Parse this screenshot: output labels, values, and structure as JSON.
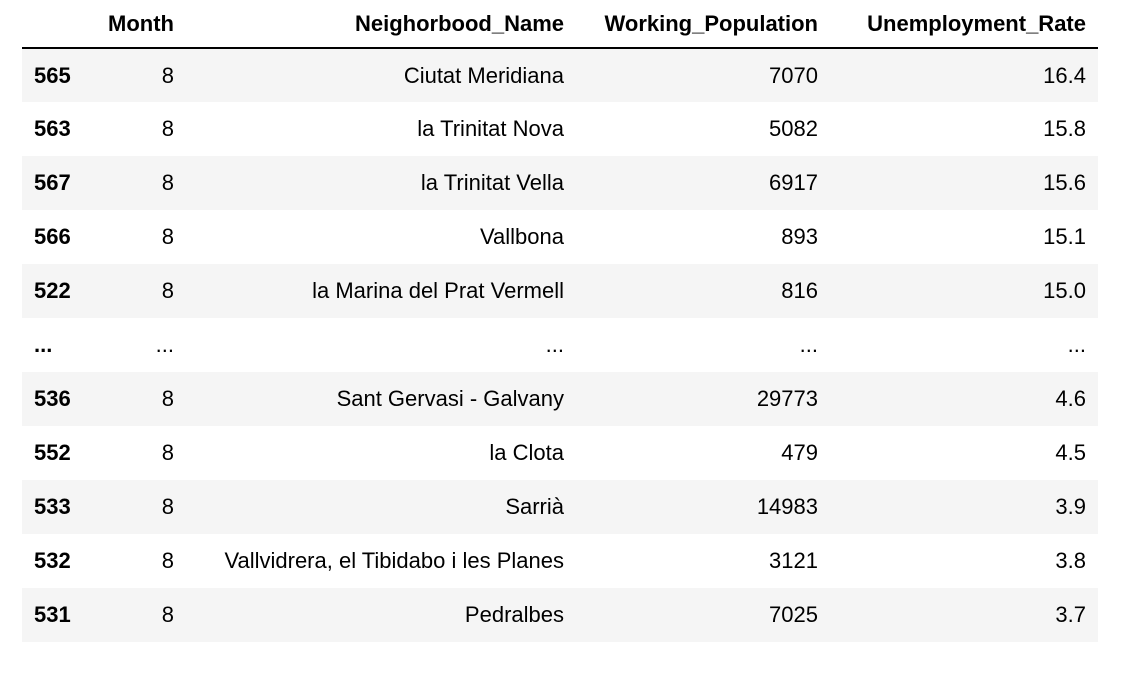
{
  "table": {
    "columns": [
      "",
      "Month",
      "Neighorbood_Name",
      "Working_Population",
      "Unemployment_Rate"
    ],
    "rows": [
      {
        "index": "565",
        "month": "8",
        "name": "Ciutat Meridiana",
        "population": "7070",
        "rate": "16.4"
      },
      {
        "index": "563",
        "month": "8",
        "name": "la Trinitat Nova",
        "population": "5082",
        "rate": "15.8"
      },
      {
        "index": "567",
        "month": "8",
        "name": "la Trinitat Vella",
        "population": "6917",
        "rate": "15.6"
      },
      {
        "index": "566",
        "month": "8",
        "name": "Vallbona",
        "population": "893",
        "rate": "15.1"
      },
      {
        "index": "522",
        "month": "8",
        "name": "la Marina del Prat Vermell",
        "population": "816",
        "rate": "15.0"
      },
      {
        "index": "...",
        "month": "...",
        "name": "...",
        "population": "...",
        "rate": "..."
      },
      {
        "index": "536",
        "month": "8",
        "name": "Sant Gervasi - Galvany",
        "population": "29773",
        "rate": "4.6"
      },
      {
        "index": "552",
        "month": "8",
        "name": "la Clota",
        "population": "479",
        "rate": "4.5"
      },
      {
        "index": "533",
        "month": "8",
        "name": "Sarrià",
        "population": "14983",
        "rate": "3.9"
      },
      {
        "index": "532",
        "month": "8",
        "name": "Vallvidrera, el Tibidabo i les Planes",
        "population": "3121",
        "rate": "3.8"
      },
      {
        "index": "531",
        "month": "8",
        "name": "Pedralbes",
        "population": "7025",
        "rate": "3.7"
      }
    ]
  }
}
